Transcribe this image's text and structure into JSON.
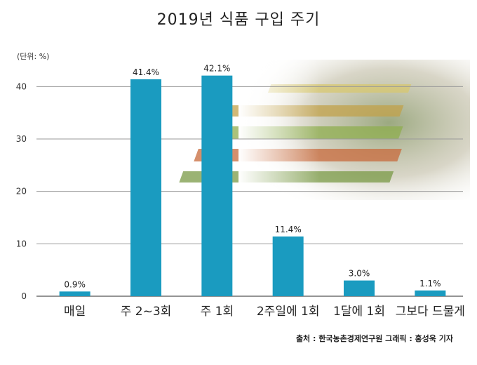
{
  "chart_data": {
    "type": "bar",
    "title": "2019년 식품 구입 주기",
    "unit_label": "(단위: %)",
    "categories": [
      "매일",
      "주 2~3회",
      "주 1회",
      "2주일에 1회",
      "1달에 1회",
      "그보다 드물게"
    ],
    "values": [
      0.9,
      41.4,
      42.1,
      11.4,
      3.0,
      1.1
    ],
    "value_labels": [
      "0.9%",
      "41.4%",
      "42.1%",
      "11.4%",
      "3.0%",
      "1.1%"
    ],
    "yticks": [
      0,
      10,
      20,
      30,
      40
    ],
    "ylim": [
      0,
      45
    ],
    "grid": true,
    "bar_color": "#1a9bc0",
    "source": "출처 : 한국농촌경제연구원 그래픽 : 홍성욱 기자"
  }
}
